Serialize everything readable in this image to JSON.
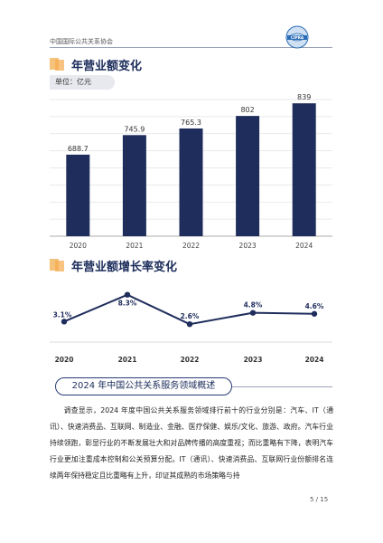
{
  "header": {
    "org": "中国国际公共关系协会",
    "logo_text": "CIPRA"
  },
  "revenue_section": {
    "title": "年营业额变化",
    "unit": "单位：亿元"
  },
  "growth_section": {
    "title": "年营业额增长率变化"
  },
  "overview": {
    "title": "2024 年中国公共关系服务领域概述",
    "paragraph": "调查显示，2024 年度中国公共关系服务领域排行前十的行业分别是：汽车、IT（通讯）、快速消费品、互联网、制造业、金融、医疗保健、娱乐/文化、旅游、政府。汽车行业持续领跑，彰显行业的不断发展壮大和对品牌传播的高度重视；而比重略有下降，表明汽车行业更加注重成本控制和公关预算分配。IT（通讯）、快速消费品、互联网行业份额排名连续两年保持稳定且比重略有上升，印证其成熟的市场策略与持"
  },
  "page": "5 / 15",
  "colors": {
    "bar": "#1f2d5c",
    "line": "#1f2d5c",
    "accent": "#f6a94d"
  },
  "chart_data": [
    {
      "type": "bar",
      "categories": [
        "2020",
        "2021",
        "2022",
        "2023",
        "2024"
      ],
      "values": [
        688.7,
        745.9,
        765.3,
        802,
        839
      ],
      "value_labels": [
        "688.7",
        "745.9",
        "765.3",
        "802",
        "839"
      ],
      "title": "年营业额变化",
      "unit": "单位：亿元",
      "ylim": [
        450,
        850
      ],
      "grid": true
    },
    {
      "type": "line",
      "categories": [
        "2020",
        "2021",
        "2022",
        "2023",
        "2024"
      ],
      "values": [
        3.1,
        8.3,
        2.6,
        4.8,
        4.6
      ],
      "value_labels": [
        "3.1%",
        "8.3%",
        "2.6%",
        "4.8%",
        "4.6%"
      ],
      "title": "年营业额增长率变化",
      "ylim": [
        0,
        10
      ],
      "grid": false
    }
  ]
}
